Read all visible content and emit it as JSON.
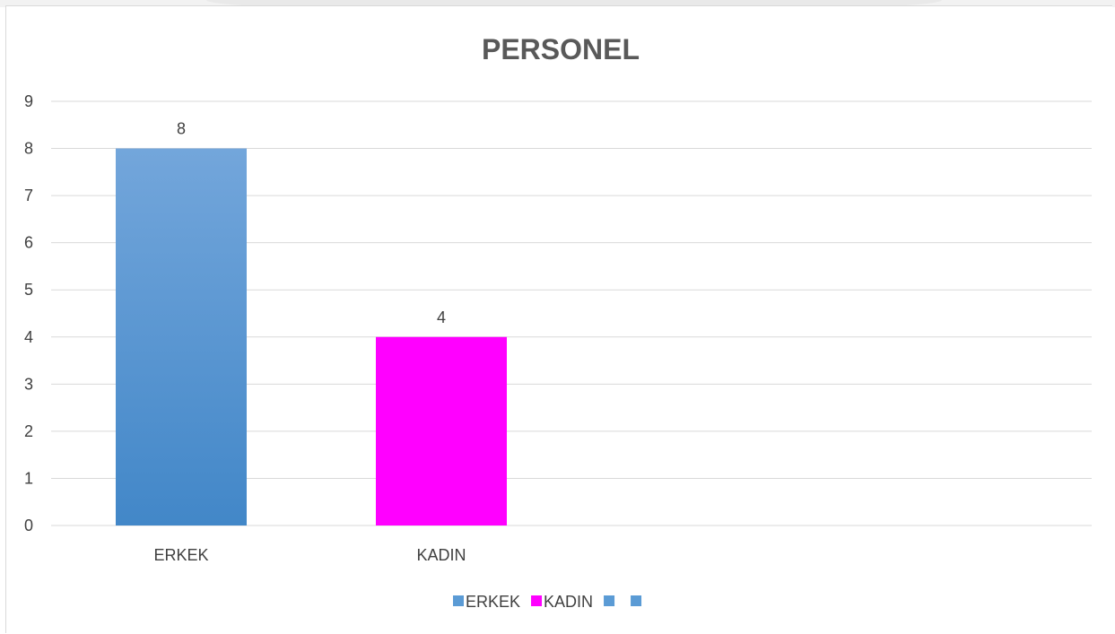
{
  "chart_data": {
    "type": "bar",
    "title": "PERSONEL",
    "categories": [
      "ERKEK",
      "KADIN"
    ],
    "values": [
      8,
      4
    ],
    "bar_colors": [
      "#5b9bd5",
      "#ff00ff"
    ],
    "ylim": [
      0,
      9
    ],
    "yticks": [
      0,
      1,
      2,
      3,
      4,
      5,
      6,
      7,
      8,
      9
    ],
    "grid": true,
    "data_labels": true,
    "legend_position": "bottom",
    "legend": [
      {
        "label": "ERKEK",
        "color": "#5b9bd5"
      },
      {
        "label": "KADIN",
        "color": "#ff00ff"
      },
      {
        "label": "",
        "color": "#5b9bd5"
      },
      {
        "label": "",
        "color": "#5b9bd5"
      }
    ]
  }
}
